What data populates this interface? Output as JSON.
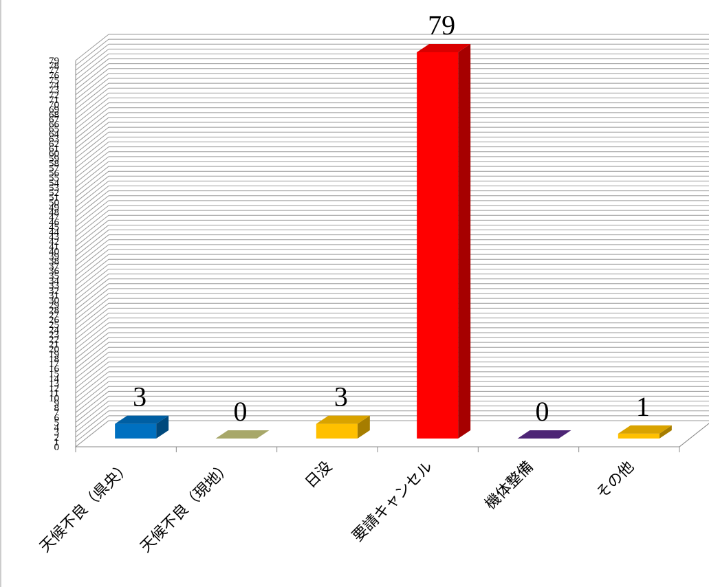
{
  "chart_data": {
    "type": "bar3d",
    "categories": [
      "天候不良（県央）",
      "天候不良（現地）",
      "日没",
      "要請キャンセル",
      "機体整備",
      "その他"
    ],
    "values": [
      3,
      0,
      3,
      79,
      0,
      1
    ],
    "colors": [
      "#0070c0",
      "#c4c47c",
      "#ffc000",
      "#ff0000",
      "#5b2c8a",
      "#ffc000"
    ],
    "ylim": [
      0,
      79
    ],
    "yticks": [
      0,
      1,
      2,
      3,
      4,
      5,
      6,
      7,
      8,
      9,
      10,
      11,
      12,
      13,
      14,
      15,
      16,
      17,
      18,
      19,
      20,
      21,
      22,
      23,
      24,
      25,
      26,
      27,
      28,
      29,
      30,
      31,
      32,
      33,
      34,
      35,
      36,
      37,
      38,
      39,
      40,
      41,
      42,
      43,
      44,
      45,
      46,
      47,
      48,
      49,
      50,
      51,
      52,
      53,
      54,
      55,
      56,
      57,
      58,
      59,
      60,
      61,
      62,
      63,
      64,
      65,
      66,
      67,
      68,
      69,
      70,
      71,
      72,
      73,
      74,
      75,
      76,
      77,
      78,
      79
    ],
    "grid": true
  }
}
